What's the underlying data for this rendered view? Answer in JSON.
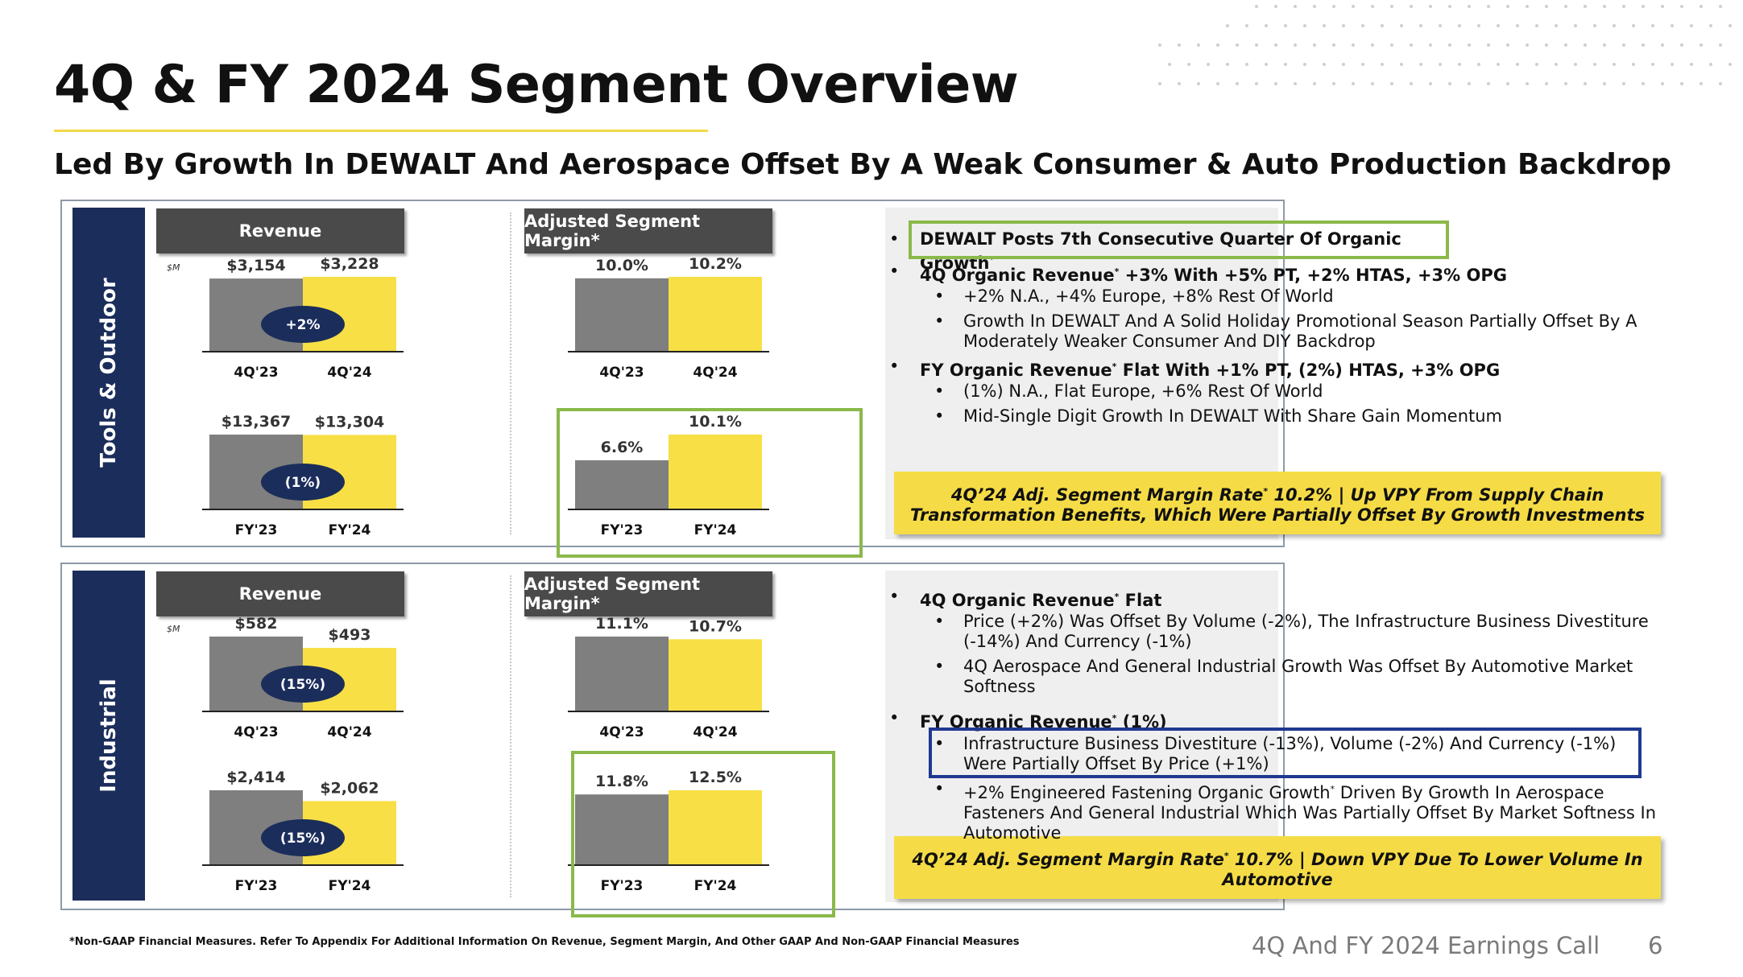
{
  "title": "4Q & FY 2024 Segment Overview",
  "subtitle": "Led By Growth In DEWALT And Aerospace Offset By A Weak Consumer & Auto Production Backdrop",
  "footnote": "*Non-GAAP Financial Measures. Refer To Appendix For Additional Information On Revenue, Segment Margin, And Other GAAP And Non-GAAP Financial Measures",
  "footer": "4Q And FY 2024 Earnings Call",
  "page_number": "6",
  "colors": {
    "prior": "#7f7f7f",
    "current": "#f7df45",
    "badge": "#1b2d5b",
    "side": "#1b2d5b",
    "highlight_green": "#8ab94a",
    "highlight_blue": "#1f3890"
  },
  "segments": [
    {
      "name": "Tools & Outdoor",
      "revenue_header": "Revenue",
      "margin_header": "Adjusted Segment Margin*",
      "unit": "$M",
      "bullets": [
        {
          "level": 1,
          "text": "DEWALT Posts 7th Consecutive Quarter Of Organic Growth",
          "sup": "*"
        },
        {
          "level": 1,
          "text": "4Q Organic Revenue",
          "sup": "*",
          "rest": " +3% With +5% PT, +2% HTAS, +3% OPG"
        },
        {
          "level": 2,
          "text": "+2% N.A., +4% Europe, +8% Rest Of World"
        },
        {
          "level": 2,
          "text": "Growth In DEWALT And A Solid Holiday Promotional Season Partially Offset By A Moderately Weaker Consumer And DIY Backdrop"
        },
        {
          "level": 1,
          "text": "FY Organic Revenue",
          "sup": "*",
          "rest": " Flat With +1% PT, (2%) HTAS, +3% OPG"
        },
        {
          "level": 2,
          "text": "(1%) N.A., Flat Europe, +6% Rest Of World"
        },
        {
          "level": 2,
          "text": "Mid-Single Digit Growth In DEWALT With Share Gain Momentum"
        }
      ],
      "callout": {
        "pre": "4Q’24 Adj. Segment Margin Rate",
        "sup": "*",
        "post": " 10.2% | Up VPY From Supply Chain Transformation Benefits, Which Were Partially Offset By Growth Investments"
      }
    },
    {
      "name": "Industrial",
      "revenue_header": "Revenue",
      "margin_header": "Adjusted Segment Margin*",
      "unit": "$M",
      "bullets": [
        {
          "level": 1,
          "text": "4Q Organic Revenue",
          "sup": "*",
          "rest": " Flat"
        },
        {
          "level": 2,
          "text": "Price (+2%) Was Offset By Volume (-2%), The Infrastructure Business Divestiture (-14%) And Currency (-1%)"
        },
        {
          "level": 2,
          "text": "4Q Aerospace And General Industrial Growth Was Offset By Automotive Market Softness"
        },
        {
          "level": 1,
          "text": "FY Organic Revenue",
          "sup": "*",
          "rest": " (1%)"
        },
        {
          "level": 2,
          "text": "Infrastructure Business Divestiture (-13%), Volume (-2%) And Currency (-1%) Were Partially Offset By Price (+1%)"
        },
        {
          "level": 2,
          "text": "+2% Engineered Fastening Organic Growth",
          "sup": "*",
          "rest": " Driven By Growth In Aerospace Fasteners And General Industrial Which Was Partially Offset By Market Softness In Automotive"
        }
      ],
      "callout": {
        "pre": "4Q’24 Adj. Segment Margin Rate",
        "sup": "*",
        "post": " 10.7% | Down VPY Due To Lower Volume In Automotive"
      }
    }
  ],
  "chart_data": [
    {
      "type": "bar",
      "segment": "Tools & Outdoor",
      "metric": "Revenue",
      "unit": "$M",
      "categories": [
        "4Q'23",
        "4Q'24"
      ],
      "values": [
        3154,
        3228
      ],
      "labels": [
        "$3,154",
        "$3,228"
      ],
      "change": "+2%"
    },
    {
      "type": "bar",
      "segment": "Tools & Outdoor",
      "metric": "Revenue",
      "unit": "$M",
      "categories": [
        "FY'23",
        "FY'24"
      ],
      "values": [
        13367,
        13304
      ],
      "labels": [
        "$13,367",
        "$13,304"
      ],
      "change": "(1%)"
    },
    {
      "type": "bar",
      "segment": "Tools & Outdoor",
      "metric": "Adjusted Segment Margin*",
      "categories": [
        "4Q'23",
        "4Q'24"
      ],
      "values": [
        10.0,
        10.2
      ],
      "labels": [
        "10.0%",
        "10.2%"
      ]
    },
    {
      "type": "bar",
      "segment": "Tools & Outdoor",
      "metric": "Adjusted Segment Margin*",
      "categories": [
        "FY'23",
        "FY'24"
      ],
      "values": [
        6.6,
        10.1
      ],
      "labels": [
        "6.6%",
        "10.1%"
      ]
    },
    {
      "type": "bar",
      "segment": "Industrial",
      "metric": "Revenue",
      "unit": "$M",
      "categories": [
        "4Q'23",
        "4Q'24"
      ],
      "values": [
        582,
        493
      ],
      "labels": [
        "$582",
        "$493"
      ],
      "change": "(15%)"
    },
    {
      "type": "bar",
      "segment": "Industrial",
      "metric": "Revenue",
      "unit": "$M",
      "categories": [
        "FY'23",
        "FY'24"
      ],
      "values": [
        2414,
        2062
      ],
      "labels": [
        "$2,414",
        "$2,062"
      ],
      "change": "(15%)"
    },
    {
      "type": "bar",
      "segment": "Industrial",
      "metric": "Adjusted Segment Margin*",
      "categories": [
        "4Q'23",
        "4Q'24"
      ],
      "values": [
        11.1,
        10.7
      ],
      "labels": [
        "11.1%",
        "10.7%"
      ]
    },
    {
      "type": "bar",
      "segment": "Industrial",
      "metric": "Adjusted Segment Margin*",
      "categories": [
        "FY'23",
        "FY'24"
      ],
      "values": [
        11.8,
        12.5
      ],
      "labels": [
        "11.8%",
        "12.5%"
      ]
    }
  ]
}
